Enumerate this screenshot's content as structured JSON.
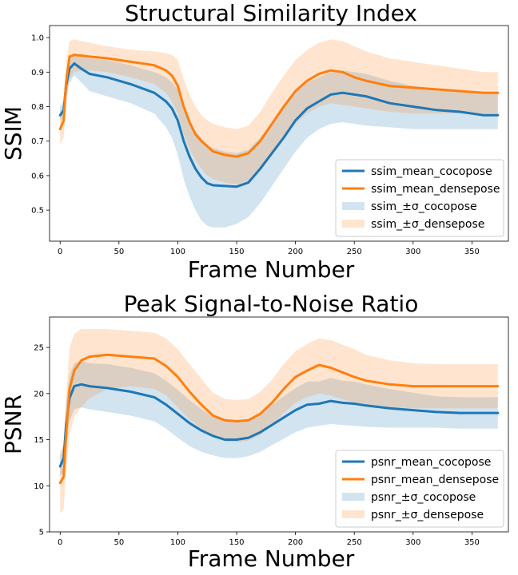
{
  "chart_data": [
    {
      "type": "line",
      "title": "Structural Similarity Index",
      "xlabel": "Frame Number",
      "ylabel": "SSIM",
      "xlim": [
        -9,
        381
      ],
      "ylim": [
        0.41,
        1.035
      ],
      "xticks": [
        0,
        50,
        100,
        150,
        200,
        250,
        300,
        350
      ],
      "yticks": [
        0.5,
        0.6,
        0.7,
        0.8,
        0.9,
        1.0
      ],
      "ytick_labels": [
        "0.5",
        "0.6",
        "0.7",
        "0.8",
        "0.9",
        "1.0"
      ],
      "legend_position": "lower-right",
      "x": [
        0,
        3,
        5,
        8,
        12,
        18,
        25,
        40,
        60,
        80,
        90,
        95,
        100,
        105,
        110,
        115,
        120,
        125,
        130,
        140,
        150,
        160,
        170,
        180,
        190,
        200,
        210,
        220,
        230,
        240,
        250,
        260,
        280,
        300,
        320,
        340,
        360,
        372
      ],
      "series": [
        {
          "name": "ssim_mean_cocopose",
          "color": "#1f77b4",
          "mean": [
            0.775,
            0.79,
            0.86,
            0.91,
            0.925,
            0.91,
            0.895,
            0.885,
            0.865,
            0.84,
            0.815,
            0.795,
            0.76,
            0.7,
            0.655,
            0.62,
            0.595,
            0.578,
            0.572,
            0.57,
            0.568,
            0.58,
            0.62,
            0.665,
            0.71,
            0.76,
            0.795,
            0.815,
            0.835,
            0.84,
            0.835,
            0.83,
            0.81,
            0.8,
            0.79,
            0.785,
            0.775,
            0.775
          ],
          "band_legend": "ssim_±σ_cocopose",
          "band_color": "#1f77b4",
          "lower": [
            0.76,
            0.77,
            0.82,
            0.87,
            0.89,
            0.87,
            0.845,
            0.83,
            0.81,
            0.78,
            0.74,
            0.71,
            0.66,
            0.59,
            0.54,
            0.5,
            0.47,
            0.455,
            0.45,
            0.45,
            0.46,
            0.48,
            0.52,
            0.57,
            0.62,
            0.67,
            0.71,
            0.735,
            0.75,
            0.755,
            0.75,
            0.745,
            0.74,
            0.735,
            0.735,
            0.735,
            0.735,
            0.735
          ],
          "upper": [
            0.8,
            0.82,
            0.9,
            0.945,
            0.955,
            0.945,
            0.94,
            0.935,
            0.92,
            0.9,
            0.885,
            0.87,
            0.85,
            0.8,
            0.76,
            0.73,
            0.71,
            0.69,
            0.68,
            0.67,
            0.665,
            0.675,
            0.71,
            0.755,
            0.8,
            0.84,
            0.87,
            0.885,
            0.9,
            0.905,
            0.9,
            0.895,
            0.875,
            0.86,
            0.85,
            0.845,
            0.84,
            0.84
          ]
        },
        {
          "name": "ssim_mean_densepose",
          "color": "#ff7f0e",
          "mean": [
            0.735,
            0.76,
            0.87,
            0.945,
            0.95,
            0.948,
            0.945,
            0.94,
            0.93,
            0.92,
            0.905,
            0.89,
            0.86,
            0.8,
            0.755,
            0.72,
            0.7,
            0.685,
            0.67,
            0.66,
            0.655,
            0.665,
            0.7,
            0.75,
            0.8,
            0.845,
            0.875,
            0.895,
            0.905,
            0.9,
            0.885,
            0.875,
            0.86,
            0.855,
            0.85,
            0.845,
            0.84,
            0.84
          ],
          "band_legend": "ssim_±σ_densepose",
          "band_color": "#ff7f0e",
          "lower": [
            0.69,
            0.71,
            0.8,
            0.88,
            0.9,
            0.905,
            0.905,
            0.9,
            0.885,
            0.865,
            0.84,
            0.815,
            0.78,
            0.72,
            0.675,
            0.645,
            0.62,
            0.6,
            0.59,
            0.58,
            0.575,
            0.585,
            0.615,
            0.66,
            0.71,
            0.75,
            0.78,
            0.8,
            0.81,
            0.805,
            0.8,
            0.795,
            0.785,
            0.78,
            0.78,
            0.78,
            0.78,
            0.78
          ],
          "upper": [
            0.78,
            0.81,
            0.93,
            0.99,
            0.995,
            0.99,
            0.985,
            0.975,
            0.965,
            0.96,
            0.955,
            0.95,
            0.935,
            0.88,
            0.835,
            0.8,
            0.775,
            0.76,
            0.75,
            0.74,
            0.735,
            0.745,
            0.785,
            0.84,
            0.89,
            0.935,
            0.965,
            0.985,
            0.995,
            0.99,
            0.975,
            0.96,
            0.94,
            0.93,
            0.92,
            0.91,
            0.9,
            0.9
          ]
        }
      ]
    },
    {
      "type": "line",
      "title": "Peak Signal-to-Noise Ratio",
      "xlabel": "Frame Number",
      "ylabel": "PSNR",
      "xlim": [
        -9,
        381
      ],
      "ylim": [
        5,
        28.3
      ],
      "xticks": [
        0,
        50,
        100,
        150,
        200,
        250,
        300,
        350
      ],
      "yticks": [
        5,
        10,
        15,
        20,
        25
      ],
      "ytick_labels": [
        "5",
        "10",
        "15",
        "20",
        "25"
      ],
      "legend_position": "lower-right",
      "x": [
        0,
        3,
        5,
        8,
        12,
        18,
        25,
        40,
        60,
        80,
        90,
        100,
        110,
        120,
        130,
        140,
        150,
        160,
        170,
        180,
        190,
        200,
        210,
        220,
        230,
        240,
        250,
        260,
        280,
        300,
        320,
        340,
        360,
        372
      ],
      "series": [
        {
          "name": "psnr_mean_cocopose",
          "color": "#1f77b4",
          "mean": [
            12.1,
            13.0,
            16.5,
            19.5,
            20.8,
            21.0,
            20.8,
            20.6,
            20.2,
            19.6,
            18.8,
            17.8,
            16.8,
            16.0,
            15.4,
            15.0,
            15.0,
            15.2,
            15.8,
            16.6,
            17.4,
            18.2,
            18.8,
            18.9,
            19.2,
            19.0,
            18.9,
            18.7,
            18.4,
            18.2,
            18.0,
            17.9,
            17.9,
            17.9
          ],
          "band_legend": "psnr_±σ_cocopose",
          "band_color": "#1f77b4",
          "lower": [
            11.0,
            11.5,
            14.0,
            17.0,
            18.3,
            18.5,
            18.3,
            18.0,
            17.6,
            17.0,
            16.2,
            15.2,
            14.3,
            13.7,
            13.3,
            13.0,
            13.0,
            13.2,
            13.7,
            14.4,
            15.1,
            15.8,
            16.3,
            16.5,
            16.7,
            16.6,
            16.5,
            16.4,
            16.3,
            16.3,
            16.3,
            16.2,
            16.2,
            16.2
          ],
          "upper": [
            13.2,
            14.5,
            19.0,
            22.0,
            23.3,
            23.5,
            23.3,
            23.2,
            22.8,
            22.2,
            21.4,
            20.4,
            19.3,
            18.3,
            17.5,
            17.0,
            17.0,
            17.2,
            17.9,
            18.8,
            19.7,
            20.6,
            21.3,
            21.3,
            21.7,
            21.4,
            21.3,
            21.0,
            20.5,
            20.1,
            19.7,
            19.6,
            19.6,
            19.6
          ]
        },
        {
          "name": "psnr_mean_densepose",
          "color": "#ff7f0e",
          "mean": [
            10.3,
            11.0,
            15.5,
            20.5,
            22.5,
            23.6,
            24.0,
            24.2,
            24.0,
            23.8,
            23.0,
            21.8,
            20.2,
            18.8,
            17.6,
            17.1,
            17.0,
            17.1,
            17.8,
            19.0,
            20.5,
            21.8,
            22.5,
            23.1,
            22.8,
            22.3,
            21.8,
            21.4,
            21.0,
            20.8,
            20.8,
            20.8,
            20.8,
            20.8
          ],
          "band_legend": "psnr_±σ_densepose",
          "band_color": "#ff7f0e",
          "lower": [
            7.0,
            7.5,
            11.5,
            15.5,
            17.5,
            18.5,
            19.5,
            20.5,
            20.8,
            20.5,
            19.8,
            18.5,
            17.2,
            16.2,
            15.3,
            14.8,
            14.7,
            14.9,
            15.5,
            16.6,
            17.9,
            19.0,
            19.6,
            20.0,
            19.8,
            19.4,
            19.0,
            18.7,
            18.5,
            18.4,
            18.4,
            18.4,
            18.4,
            18.4
          ],
          "upper": [
            13.6,
            14.5,
            19.5,
            25.0,
            26.5,
            27.0,
            27.0,
            27.0,
            26.8,
            26.6,
            26.0,
            24.8,
            23.2,
            21.6,
            20.1,
            19.4,
            19.3,
            19.4,
            20.2,
            21.5,
            23.2,
            24.6,
            25.4,
            26.0,
            25.8,
            25.3,
            24.8,
            24.2,
            23.6,
            23.3,
            23.2,
            23.2,
            23.2,
            23.2
          ]
        }
      ]
    }
  ]
}
